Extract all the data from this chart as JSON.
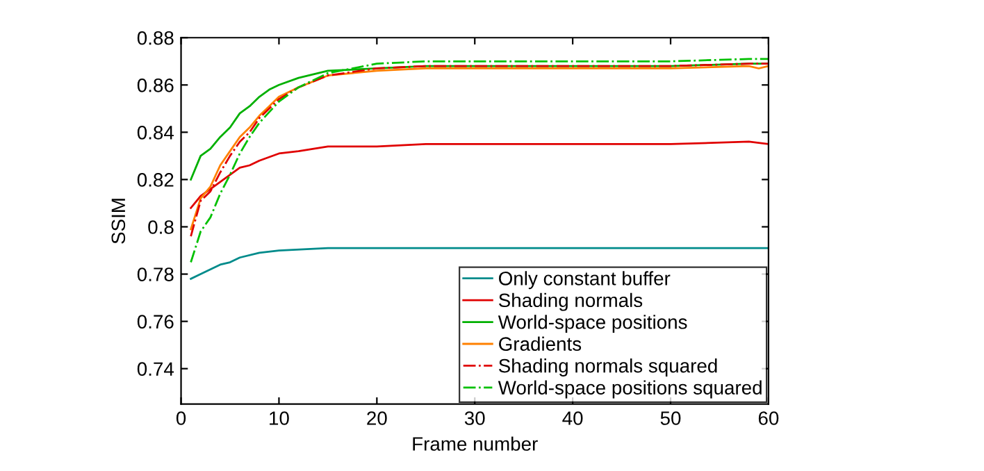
{
  "chart_data": {
    "type": "line",
    "xlabel": "Frame number",
    "ylabel": "SSIM",
    "xlim": [
      0,
      60
    ],
    "ylim": [
      0.725,
      0.88
    ],
    "xticks": [
      0,
      10,
      20,
      30,
      40,
      50,
      60
    ],
    "yticks": [
      0.74,
      0.76,
      0.78,
      0.8,
      0.82,
      0.84,
      0.86,
      0.88
    ],
    "grid": false,
    "legend": "bottom right",
    "marker": "none",
    "series": [
      {
        "name": "Only constant buffer",
        "color": "#008b8b",
        "line_style": "solid",
        "x": [
          1,
          2,
          3,
          4,
          5,
          6,
          8,
          10,
          15,
          20,
          30,
          40,
          50,
          58,
          60
        ],
        "values": [
          0.778,
          0.78,
          0.782,
          0.784,
          0.785,
          0.787,
          0.789,
          0.79,
          0.791,
          0.791,
          0.791,
          0.791,
          0.791,
          0.791,
          0.791
        ]
      },
      {
        "name": "Shading normals",
        "color": "#e00000",
        "line_style": "solid",
        "x": [
          1,
          2,
          3,
          4,
          5,
          6,
          7,
          8,
          10,
          12,
          15,
          20,
          25,
          30,
          40,
          50,
          58,
          60
        ],
        "values": [
          0.808,
          0.813,
          0.816,
          0.819,
          0.822,
          0.825,
          0.826,
          0.828,
          0.831,
          0.832,
          0.834,
          0.834,
          0.835,
          0.835,
          0.835,
          0.835,
          0.836,
          0.835
        ]
      },
      {
        "name": "World-space positions",
        "color": "#00b000",
        "line_style": "solid",
        "x": [
          1,
          2,
          3,
          4,
          5,
          6,
          7,
          8,
          9,
          10,
          12,
          15,
          20,
          25,
          30,
          40,
          50,
          58,
          60
        ],
        "values": [
          0.82,
          0.83,
          0.833,
          0.838,
          0.842,
          0.848,
          0.851,
          0.855,
          0.858,
          0.86,
          0.863,
          0.866,
          0.867,
          0.868,
          0.868,
          0.868,
          0.868,
          0.869,
          0.869
        ]
      },
      {
        "name": "Gradients",
        "color": "#ff8000",
        "line_style": "solid",
        "x": [
          1,
          2,
          3,
          4,
          5,
          6,
          7,
          8,
          9,
          10,
          12,
          15,
          20,
          25,
          30,
          40,
          50,
          58,
          59,
          60
        ],
        "values": [
          0.799,
          0.812,
          0.817,
          0.826,
          0.832,
          0.838,
          0.842,
          0.847,
          0.851,
          0.855,
          0.859,
          0.864,
          0.866,
          0.867,
          0.867,
          0.867,
          0.867,
          0.868,
          0.867,
          0.868
        ]
      },
      {
        "name": "Shading normals squared",
        "color": "#e00000",
        "line_style": "dashdot",
        "x": [
          1,
          2,
          3,
          4,
          5,
          6,
          7,
          8,
          10,
          12,
          15,
          20,
          25,
          30,
          40,
          50,
          58,
          60
        ],
        "values": [
          0.796,
          0.811,
          0.815,
          0.823,
          0.83,
          0.836,
          0.84,
          0.846,
          0.854,
          0.859,
          0.864,
          0.867,
          0.868,
          0.868,
          0.868,
          0.868,
          0.869,
          0.869
        ]
      },
      {
        "name": "World-space positions squared",
        "color": "#00c000",
        "line_style": "dashdot",
        "x": [
          1,
          2,
          3,
          4,
          5,
          6,
          7,
          8,
          10,
          12,
          15,
          20,
          25,
          30,
          40,
          50,
          58,
          60
        ],
        "values": [
          0.785,
          0.798,
          0.804,
          0.814,
          0.822,
          0.831,
          0.838,
          0.844,
          0.853,
          0.859,
          0.865,
          0.869,
          0.87,
          0.87,
          0.87,
          0.87,
          0.871,
          0.871
        ]
      }
    ]
  }
}
